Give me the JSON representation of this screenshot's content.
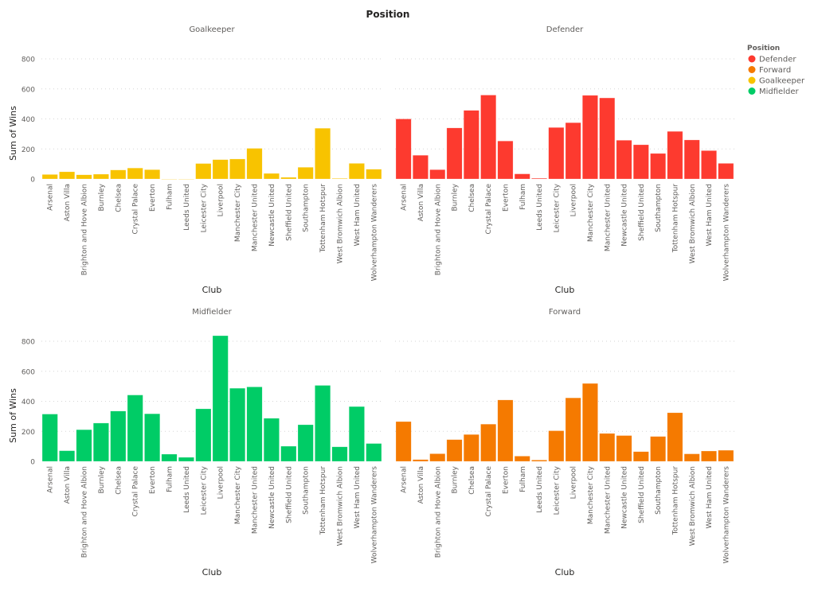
{
  "chart_data": {
    "type": "bar",
    "title": "Position",
    "xlabel": "Club",
    "ylabel": "Sum of Wins",
    "ylim": [
      0,
      800
    ],
    "yticks": [
      0,
      200,
      400,
      600,
      800
    ],
    "grid": true,
    "legend": {
      "title": "Position",
      "placement": "top-right",
      "entries": [
        "Defender",
        "Forward",
        "Goalkeeper",
        "Midfielder"
      ]
    },
    "colors": {
      "Defender": "#FD3A2F",
      "Forward": "#F57A00",
      "Goalkeeper": "#F8C300",
      "Midfielder": "#00CC66"
    },
    "categories": [
      "Arsenal",
      "Aston Villa",
      "Brighton and Hove Albion",
      "Burnley",
      "Chelsea",
      "Crystal Palace",
      "Everton",
      "Fulham",
      "Leeds United",
      "Leicester City",
      "Liverpool",
      "Manchester City",
      "Manchester United",
      "Newcastle United",
      "Sheffield United",
      "Southampton",
      "Tottenham Hotspur",
      "West Bromwich Albion",
      "West Ham United",
      "Wolverhampton Wanderers"
    ],
    "series": [
      {
        "name": "Goalkeeper",
        "values": [
          30,
          48,
          28,
          32,
          60,
          73,
          62,
          0,
          0,
          103,
          129,
          133,
          204,
          37,
          11,
          78,
          338,
          4,
          104,
          65
        ]
      },
      {
        "name": "Defender",
        "values": [
          400,
          158,
          62,
          340,
          457,
          559,
          253,
          34,
          5,
          343,
          375,
          557,
          540,
          258,
          228,
          170,
          317,
          260,
          189,
          104
        ]
      },
      {
        "name": "Midfielder",
        "values": [
          315,
          71,
          211,
          255,
          335,
          442,
          317,
          48,
          27,
          350,
          837,
          487,
          496,
          287,
          101,
          244,
          506,
          97,
          365,
          119
        ]
      },
      {
        "name": "Forward",
        "values": [
          265,
          12,
          51,
          145,
          179,
          248,
          409,
          35,
          9,
          204,
          423,
          519,
          186,
          172,
          65,
          166,
          324,
          50,
          69,
          74
        ]
      }
    ]
  }
}
